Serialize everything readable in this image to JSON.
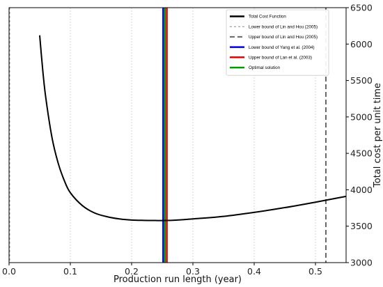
{
  "chart_data": {
    "type": "line",
    "title": "",
    "xlabel": "Production run length (year)",
    "ylabel": "Total cost per unit time",
    "xlim": [
      0.0,
      0.55
    ],
    "ylim": [
      3000,
      6500
    ],
    "x_ticks": [
      0.0,
      0.1,
      0.2,
      0.3,
      0.4,
      0.5
    ],
    "y_ticks": [
      3000,
      3500,
      4000,
      4500,
      5000,
      5500,
      6000,
      6500
    ],
    "y_axis_side": "right",
    "grid": true,
    "legend_position": "top-right",
    "series": [
      {
        "name": "Total Cost Function",
        "color": "#000000",
        "style": "solid",
        "x": [
          0.05,
          0.055,
          0.06,
          0.07,
          0.08,
          0.09,
          0.1,
          0.12,
          0.14,
          0.16,
          0.18,
          0.2,
          0.22,
          0.24,
          0.255,
          0.27,
          0.3,
          0.35,
          0.4,
          0.45,
          0.5,
          0.55
        ],
        "y": [
          6120,
          5640,
          5260,
          4720,
          4370,
          4130,
          3960,
          3780,
          3680,
          3630,
          3600,
          3585,
          3580,
          3578,
          3578,
          3582,
          3600,
          3635,
          3690,
          3755,
          3830,
          3910
        ]
      }
    ],
    "vertical_lines": [
      {
        "name": "Lower bound of Lin and Hou (2005)",
        "x": 0.001,
        "color": "#888888",
        "style": "dashed-thin"
      },
      {
        "name": "Upper bound of Lin and Hou (2005)",
        "x": 0.517,
        "color": "#666666",
        "style": "dashed-thick"
      },
      {
        "name": "Lower bound of Yang et al. (2004)",
        "x": 0.2515,
        "color": "#0000ee",
        "style": "solid"
      },
      {
        "name": "Upper bound of Lan et al. (2003)",
        "x": 0.2575,
        "color": "#ee0000",
        "style": "solid"
      },
      {
        "name": "Optimal solution",
        "x": 0.2545,
        "color": "#009900",
        "style": "solid"
      }
    ],
    "legend": [
      {
        "label": "Total Cost Function",
        "color": "#000000",
        "style": "solid"
      },
      {
        "label": "Lower bound of Lin and Hou (2005)",
        "color": "#888888",
        "style": "dashed-thin"
      },
      {
        "label": "Upper bound of Lin and Hou (2005)",
        "color": "#666666",
        "style": "dashed-thick"
      },
      {
        "label": "Lower bound of Yang et al. (2004)",
        "color": "#0000ee",
        "style": "solid"
      },
      {
        "label": "Upper bound of Lan et al. (2003)",
        "color": "#ee0000",
        "style": "solid"
      },
      {
        "label": "Optimal solution",
        "color": "#009900",
        "style": "solid"
      }
    ]
  }
}
